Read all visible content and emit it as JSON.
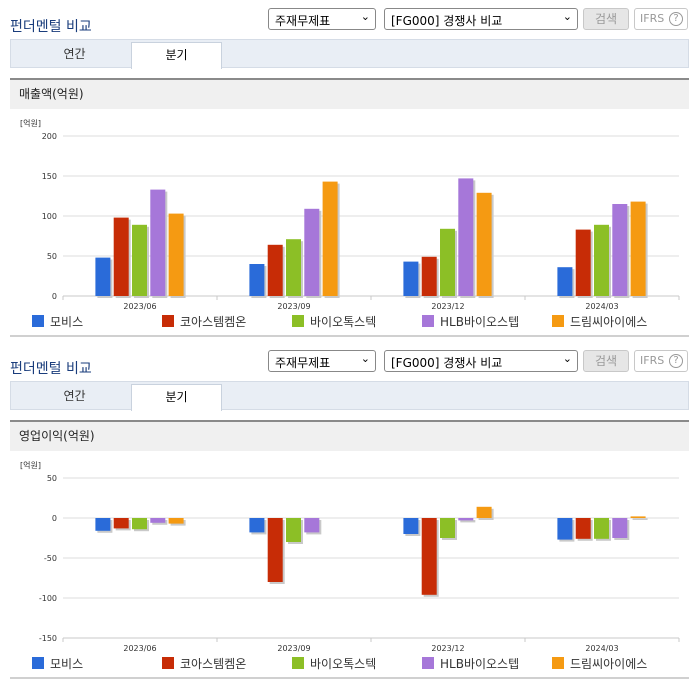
{
  "sections": [
    {
      "title": "펀더멘털 비교",
      "select1": "주재무제표",
      "select2": "[FG000] 경쟁사 비교",
      "search_label": "검색",
      "ifrs_label": "IFRS",
      "help_label": "?",
      "tabs": [
        "연간",
        "분기"
      ],
      "active_tab": "분기",
      "metric_title": "매출액(억원)",
      "unit_label": "[억원]"
    },
    {
      "title": "펀더멘털 비교",
      "select1": "주재무제표",
      "select2": "[FG000] 경쟁사 비교",
      "search_label": "검색",
      "ifrs_label": "IFRS",
      "help_label": "?",
      "tabs": [
        "연간",
        "분기"
      ],
      "active_tab": "분기",
      "metric_title": "영업이익(억원)",
      "unit_label": "[억원]"
    }
  ],
  "colors": {
    "series": [
      "#2a6bd9",
      "#c72c06",
      "#8cbf26",
      "#a677d9",
      "#f59a12"
    ],
    "title": "#1a3d7c",
    "grid": "#dcdcdc"
  },
  "chart_data": [
    {
      "type": "bar",
      "title": "매출액(억원)",
      "ylabel": "[억원]",
      "categories": [
        "2023/06",
        "2023/09",
        "2023/12",
        "2024/03"
      ],
      "ylim": [
        0,
        200
      ],
      "yticks": [
        0,
        50,
        100,
        150,
        200
      ],
      "grid": true,
      "legend": "bottom",
      "series": [
        {
          "name": "모비스",
          "values": [
            48,
            40,
            43,
            36
          ]
        },
        {
          "name": "코아스템켐온",
          "values": [
            98,
            64,
            49,
            83
          ]
        },
        {
          "name": "바이오톡스텍",
          "values": [
            89,
            71,
            84,
            89
          ]
        },
        {
          "name": "HLB바이오스텝",
          "values": [
            133,
            109,
            147,
            115
          ]
        },
        {
          "name": "드림씨아이에스",
          "values": [
            103,
            143,
            129,
            118
          ]
        }
      ]
    },
    {
      "type": "bar",
      "title": "영업이익(억원)",
      "ylabel": "[억원]",
      "categories": [
        "2023/06",
        "2023/09",
        "2023/12",
        "2024/03"
      ],
      "ylim": [
        -150,
        50
      ],
      "yticks": [
        -150,
        -100,
        -50,
        0,
        50
      ],
      "grid": true,
      "legend": "bottom",
      "series": [
        {
          "name": "모비스",
          "values": [
            -16,
            -18,
            -20,
            -27
          ]
        },
        {
          "name": "코아스템켐온",
          "values": [
            -13,
            -80,
            -96,
            -26
          ]
        },
        {
          "name": "바이오톡스텍",
          "values": [
            -14,
            -30,
            -25,
            -26
          ]
        },
        {
          "name": "HLB바이오스텝",
          "values": [
            -6,
            -18,
            -3,
            -25
          ]
        },
        {
          "name": "드림씨아이에스",
          "values": [
            -7,
            0,
            14,
            2
          ]
        }
      ]
    }
  ]
}
